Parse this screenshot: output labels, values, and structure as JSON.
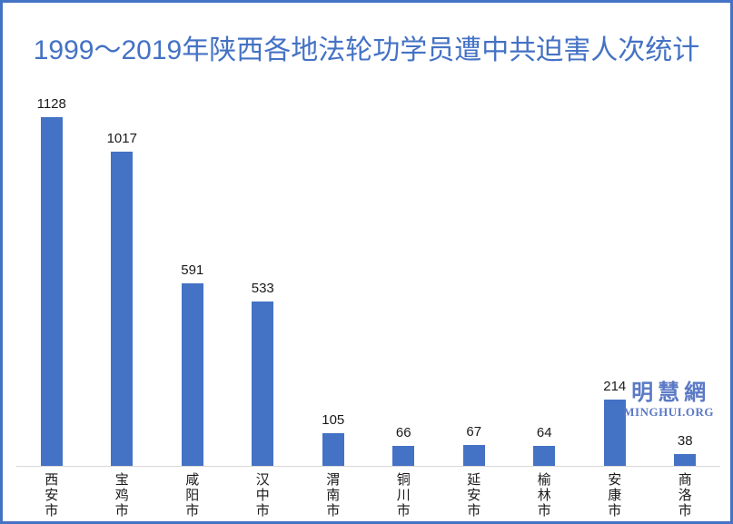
{
  "chart_data": {
    "type": "bar",
    "title": "1999～2019年陕西各地法轮功学员遭中共迫害人次统计",
    "categories": [
      "西安市",
      "宝鸡市",
      "咸阳市",
      "汉中市",
      "渭南市",
      "铜川市",
      "延安市",
      "榆林市",
      "安康市",
      "商洛市"
    ],
    "values": [
      1128,
      1017,
      591,
      533,
      105,
      66,
      67,
      64,
      214,
      38
    ],
    "xlabel": "",
    "ylabel": "",
    "ylim": [
      0,
      1200
    ],
    "grid": false,
    "legend": false,
    "data_labels": true,
    "category_label_orientation": "vertical-stacked"
  },
  "watermark": {
    "cn": "明慧網",
    "en": "MINGHUI.ORG"
  },
  "colors": {
    "bar": "#4472C4",
    "title": "#4472C4",
    "border": "#4472C4",
    "axis_line": "#D9D9D9",
    "label_text": "#1a1a1a",
    "watermark": "#5B79C5"
  }
}
